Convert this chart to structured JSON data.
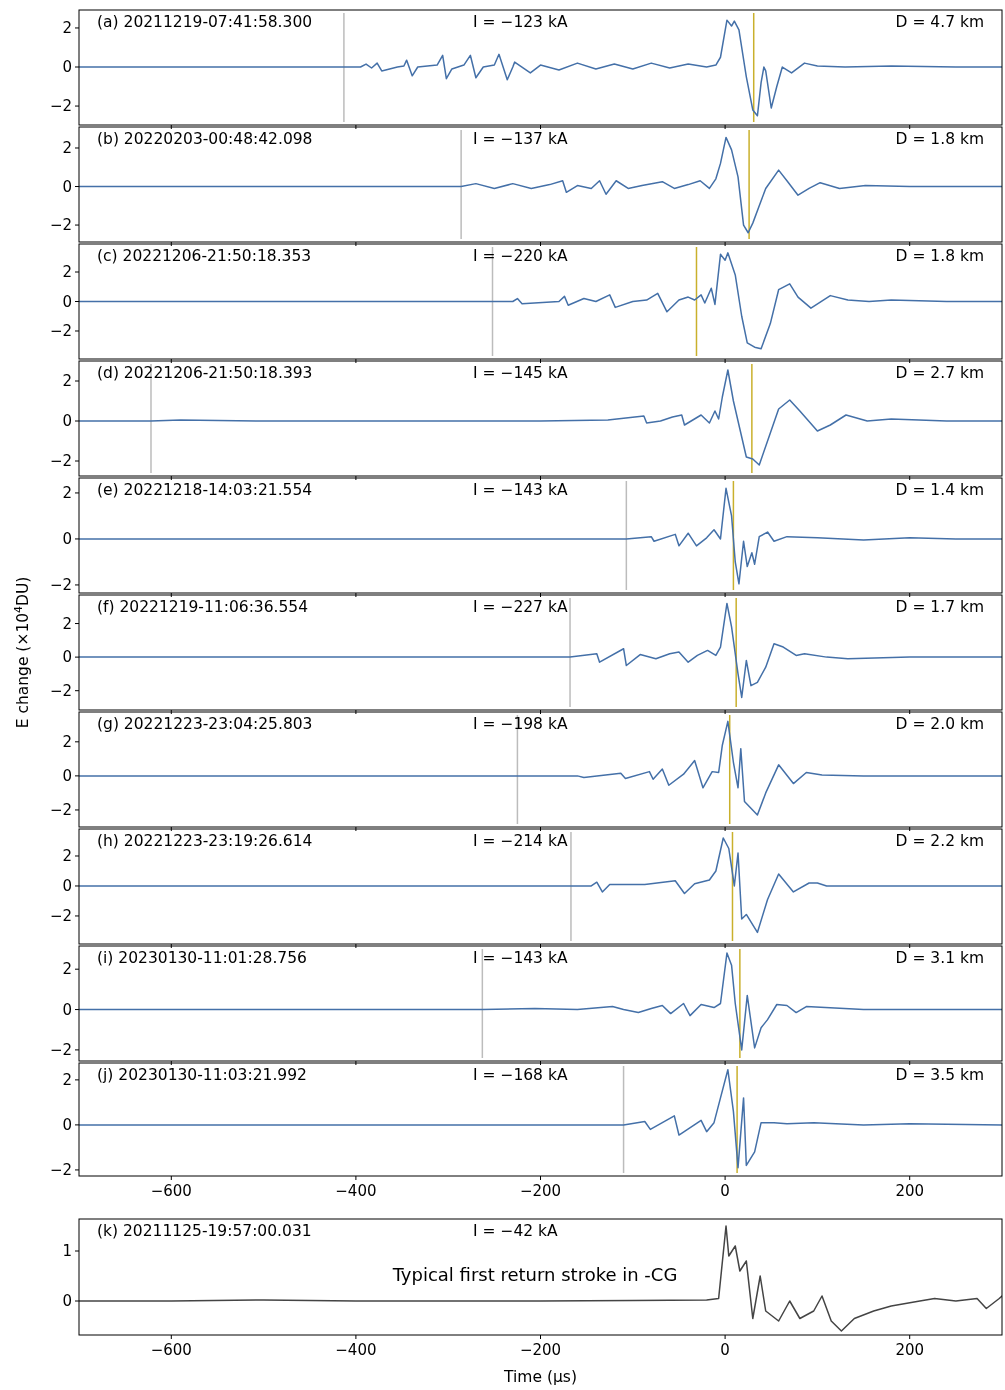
{
  "chart_data": [
    {
      "type": "line",
      "annotations": [
        "(a) 20211219-07:41:58.300",
        "I = −123 kA",
        "D = 4.7 km"
      ],
      "xlim": [
        -700,
        300
      ],
      "xticks": [
        -600,
        -400,
        -200,
        0,
        200
      ],
      "ylim": [
        -2.97,
        2.92
      ],
      "yticks": [
        -2,
        0,
        2
      ],
      "tick_labels": "y",
      "ref_lines": [
        {
          "axis": "x",
          "value": -413,
          "color": "#bcbcbc"
        },
        {
          "axis": "x",
          "value": 31,
          "color": "#c9b02c"
        }
      ],
      "series": [
        {
          "color": "#4470a8",
          "x": [
            -700,
            -600,
            -500,
            -420,
            -395,
            -389,
            -383,
            -377,
            -372,
            -355,
            -348,
            -345,
            -339,
            -333,
            -312,
            -306,
            -302,
            -296,
            -283,
            -276,
            -270,
            -262,
            -250,
            -245,
            -236,
            -230,
            -228,
            -211,
            -200,
            -180,
            -160,
            -140,
            -120,
            -100,
            -80,
            -60,
            -40,
            -20,
            -10,
            -5,
            2,
            7,
            10,
            15,
            23,
            30,
            35,
            39,
            42,
            44,
            50,
            56,
            62,
            72,
            86,
            100,
            130,
            180,
            250,
            300
          ],
          "values": [
            0,
            0,
            0,
            0,
            0,
            0.15,
            -0.05,
            0.2,
            -0.2,
            0,
            0.05,
            0.35,
            -0.45,
            0,
            0.1,
            0.6,
            -0.6,
            -0.1,
            0.1,
            0.6,
            -0.55,
            0,
            0.1,
            0.65,
            -0.65,
            0,
            0.25,
            -0.3,
            0.1,
            -0.15,
            0.2,
            -0.1,
            0.15,
            -0.1,
            0.2,
            -0.05,
            0.15,
            0,
            0.1,
            0.5,
            2.4,
            2.1,
            2.35,
            1.9,
            -0.5,
            -2.2,
            -2.5,
            -0.8,
            0,
            -0.2,
            -2.1,
            -1.0,
            0,
            -0.3,
            0.2,
            0.05,
            0,
            0.05,
            0,
            0
          ]
        }
      ]
    },
    {
      "type": "line",
      "annotations": [
        "(b) 20220203-00:48:42.098",
        "I = −137 kA",
        "D = 1.8 km"
      ],
      "xlim": [
        -700,
        300
      ],
      "xticks": [
        -600,
        -400,
        -200,
        0,
        200
      ],
      "ylim": [
        -2.88,
        3.09
      ],
      "yticks": [
        -2,
        0,
        2
      ],
      "tick_labels": "y",
      "ref_lines": [
        {
          "axis": "x",
          "value": -286,
          "color": "#bcbcbc"
        },
        {
          "axis": "x",
          "value": 26,
          "color": "#c9b02c"
        }
      ],
      "series": [
        {
          "color": "#4470a8",
          "x": [
            -700,
            -500,
            -300,
            -286,
            -270,
            -250,
            -230,
            -210,
            -190,
            -176,
            -172,
            -160,
            -145,
            -136,
            -129,
            -118,
            -105,
            -90,
            -68,
            -55,
            -40,
            -27,
            -17,
            -10,
            -5,
            1,
            7,
            14,
            20,
            25,
            30,
            37,
            44,
            58,
            67,
            79,
            91,
            103,
            124,
            152,
            200,
            300
          ],
          "values": [
            0,
            0,
            0,
            0,
            0.15,
            -0.1,
            0.15,
            -0.1,
            0.1,
            0.3,
            -0.3,
            0.05,
            -0.1,
            0.3,
            -0.4,
            0.3,
            -0.1,
            0.05,
            0.25,
            -0.1,
            0.1,
            0.3,
            -0.1,
            0.4,
            1.2,
            2.55,
            1.9,
            0.5,
            -2.0,
            -2.4,
            -1.9,
            -1.0,
            -0.1,
            0.85,
            0.3,
            -0.45,
            -0.1,
            0.2,
            -0.1,
            0.05,
            0,
            0
          ]
        }
      ]
    },
    {
      "type": "line",
      "annotations": [
        "(c) 20221206-21:50:18.353",
        "I = −220 kA",
        "D = 1.8 km"
      ],
      "xlim": [
        -700,
        300
      ],
      "xticks": [
        -600,
        -400,
        -200,
        0,
        200
      ],
      "ylim": [
        -3.9,
        3.9
      ],
      "yticks": [
        -2,
        0,
        2
      ],
      "tick_labels": "y",
      "ref_lines": [
        {
          "axis": "x",
          "value": -252,
          "color": "#bcbcbc"
        },
        {
          "axis": "x",
          "value": -31,
          "color": "#c9b02c"
        }
      ],
      "series": [
        {
          "color": "#4470a8",
          "x": [
            -700,
            -400,
            -252,
            -230,
            -225,
            -220,
            -180,
            -174,
            -170,
            -153,
            -140,
            -125,
            -119,
            -100,
            -85,
            -73,
            -63,
            -50,
            -40,
            -33,
            -26,
            -22,
            -15,
            -11,
            -5,
            0,
            3,
            11,
            18,
            24,
            32,
            39,
            49,
            58,
            70,
            79,
            93,
            114,
            133,
            156,
            180,
            240,
            300
          ],
          "values": [
            0,
            0,
            0,
            0,
            0.2,
            -0.15,
            0,
            0.35,
            -0.25,
            0.2,
            0,
            0.45,
            -0.4,
            0,
            0.1,
            0.55,
            -0.7,
            0.1,
            0.3,
            0.1,
            0.45,
            -0.1,
            0.9,
            -0.2,
            3.2,
            2.8,
            3.3,
            1.8,
            -1.0,
            -2.8,
            -3.1,
            -3.2,
            -1.5,
            0.8,
            1.2,
            0.3,
            -0.45,
            0.4,
            0.1,
            0,
            0.1,
            0,
            0
          ]
        }
      ]
    },
    {
      "type": "line",
      "annotations": [
        "(d) 20221206-21:50:18.393",
        "I = −145 kA",
        "D = 2.7 km"
      ],
      "xlim": [
        -700,
        300
      ],
      "xticks": [
        -600,
        -400,
        -200,
        0,
        200
      ],
      "ylim": [
        -2.75,
        3.0
      ],
      "yticks": [
        -2,
        0,
        2
      ],
      "tick_labels": "y",
      "ref_lines": [
        {
          "axis": "x",
          "value": -622,
          "color": "#bcbcbc"
        },
        {
          "axis": "x",
          "value": 29,
          "color": "#c9b02c"
        }
      ],
      "series": [
        {
          "color": "#4470a8",
          "x": [
            -700,
            -622,
            -590,
            -500,
            -400,
            -300,
            -200,
            -127,
            -88,
            -85,
            -70,
            -57,
            -47,
            -44,
            -35,
            -26,
            -17,
            -11,
            -7,
            -3,
            3,
            9,
            16,
            23,
            30,
            37,
            49,
            58,
            70,
            81,
            100,
            114,
            131,
            154,
            180,
            240,
            300
          ],
          "values": [
            0,
            0,
            0.05,
            0,
            0,
            0,
            0,
            0.05,
            0.25,
            -0.1,
            0,
            0.2,
            0.3,
            -0.2,
            0.05,
            0.3,
            -0.1,
            0.5,
            0.1,
            1.2,
            2.55,
            1.0,
            -0.4,
            -1.8,
            -1.9,
            -2.2,
            -0.6,
            0.6,
            1.05,
            0.5,
            -0.5,
            -0.2,
            0.3,
            0,
            0.1,
            0,
            0
          ]
        }
      ]
    },
    {
      "type": "line",
      "annotations": [
        "(e) 20221218-14:03:21.554",
        "I = −143 kA",
        "D = 1.4 km"
      ],
      "xlim": [
        -700,
        300
      ],
      "xticks": [
        -600,
        -400,
        -200,
        0,
        200
      ],
      "ylim": [
        -2.35,
        2.65
      ],
      "yticks": [
        -2,
        0,
        2
      ],
      "tick_labels": "y",
      "ref_lines": [
        {
          "axis": "x",
          "value": -107,
          "color": "#bcbcbc"
        },
        {
          "axis": "x",
          "value": 9,
          "color": "#c9b02c"
        }
      ],
      "series": [
        {
          "color": "#4470a8",
          "x": [
            -700,
            -400,
            -107,
            -80,
            -77,
            -54,
            -50,
            -40,
            -31,
            -20,
            -12,
            -5,
            1,
            7,
            11,
            15,
            20,
            24,
            29,
            32,
            37,
            46,
            53,
            67,
            100,
            150,
            200,
            250,
            300
          ],
          "values": [
            0,
            0,
            0,
            0.1,
            -0.1,
            0.2,
            -0.3,
            0.25,
            -0.3,
            0.05,
            0.4,
            0,
            2.2,
            1.0,
            -1.0,
            -1.95,
            -0.1,
            -1.2,
            -0.6,
            -1.1,
            0.1,
            0.3,
            -0.1,
            0.1,
            0.05,
            -0.05,
            0.05,
            0,
            0
          ]
        }
      ]
    },
    {
      "type": "line",
      "annotations": [
        "(f) 20221219-11:06:36.554",
        "I = −227 kA",
        "D = 1.7 km"
      ],
      "ylabel": "E change (×10$^{4}$DU)",
      "xlim": [
        -700,
        300
      ],
      "xticks": [
        -600,
        -400,
        -200,
        0,
        200
      ],
      "ylim": [
        -3.15,
        3.7
      ],
      "yticks": [
        -2,
        0,
        2
      ],
      "tick_labels": "y",
      "ref_lines": [
        {
          "axis": "x",
          "value": -168,
          "color": "#bcbcbc"
        },
        {
          "axis": "x",
          "value": 12,
          "color": "#c9b02c"
        }
      ],
      "series": [
        {
          "color": "#4470a8",
          "x": [
            -700,
            -400,
            -168,
            -139,
            -136,
            -110,
            -107,
            -92,
            -75,
            -60,
            -50,
            -40,
            -30,
            -19,
            -10,
            -5,
            2,
            7,
            14,
            18,
            23,
            28,
            35,
            44,
            53,
            63,
            77,
            86,
            110,
            133,
            200,
            300
          ],
          "values": [
            0,
            0,
            0,
            0.2,
            -0.3,
            0.5,
            -0.5,
            0.15,
            -0.1,
            0.2,
            0.3,
            -0.3,
            0.1,
            0.4,
            0.1,
            0.6,
            3.2,
            1.8,
            -1.0,
            -2.4,
            -0.2,
            -1.7,
            -1.5,
            -0.6,
            0.8,
            0.6,
            0.1,
            0.2,
            0,
            -0.1,
            0,
            0
          ]
        }
      ]
    },
    {
      "type": "line",
      "annotations": [
        "(g) 20221223-23:04:25.803",
        "I = −198 kA",
        "D = 2.0 km"
      ],
      "xlim": [
        -700,
        300
      ],
      "xticks": [
        -600,
        -400,
        -200,
        0,
        200
      ],
      "ylim": [
        -3.0,
        3.75
      ],
      "yticks": [
        -2,
        0,
        2
      ],
      "tick_labels": "y",
      "ref_lines": [
        {
          "axis": "x",
          "value": -225,
          "color": "#bcbcbc"
        },
        {
          "axis": "x",
          "value": 5,
          "color": "#c9b02c"
        }
      ],
      "series": [
        {
          "color": "#4470a8",
          "x": [
            -700,
            -400,
            -225,
            -160,
            -153,
            -113,
            -108,
            -82,
            -78,
            -68,
            -61,
            -45,
            -33,
            -24,
            -14,
            -7,
            -3,
            3,
            9,
            14,
            17,
            21,
            28,
            35,
            44,
            58,
            74,
            88,
            105,
            150,
            300
          ],
          "values": [
            0,
            0,
            0,
            0,
            -0.1,
            0.15,
            -0.15,
            0.25,
            -0.2,
            0.4,
            -0.55,
            0.1,
            0.9,
            -0.7,
            0.25,
            0.2,
            1.8,
            3.2,
            0.8,
            -0.7,
            1.6,
            -1.5,
            -1.9,
            -2.3,
            -1.0,
            0.65,
            -0.45,
            0.2,
            0.05,
            0,
            0
          ]
        }
      ]
    },
    {
      "type": "line",
      "annotations": [
        "(h) 20221223-23:19:26.614",
        "I = −214 kA",
        "D = 2.2 km"
      ],
      "xlim": [
        -700,
        300
      ],
      "xticks": [
        -600,
        -400,
        -200,
        0,
        200
      ],
      "ylim": [
        -3.87,
        3.8
      ],
      "yticks": [
        -2,
        0,
        2
      ],
      "tick_labels": "y",
      "ref_lines": [
        {
          "axis": "x",
          "value": -167,
          "color": "#bcbcbc"
        },
        {
          "axis": "x",
          "value": 8,
          "color": "#c9b02c"
        }
      ],
      "series": [
        {
          "color": "#4470a8",
          "x": [
            -700,
            -400,
            -167,
            -145,
            -139,
            -133,
            -125,
            -87,
            -54,
            -44,
            -33,
            -17,
            -10,
            -2,
            4,
            10,
            14,
            18,
            23,
            35,
            46,
            58,
            74,
            91,
            100,
            110,
            200,
            300
          ],
          "values": [
            0,
            0,
            0,
            0,
            0.25,
            -0.4,
            0.1,
            0.1,
            0.35,
            -0.5,
            0.15,
            0.4,
            1.0,
            3.2,
            2.5,
            0,
            2.2,
            -2.2,
            -1.9,
            -3.1,
            -0.9,
            0.8,
            -0.4,
            0.2,
            0.2,
            0,
            0,
            0
          ]
        }
      ]
    },
    {
      "type": "line",
      "annotations": [
        "(i) 20230130-11:01:28.756",
        "I = −143 kA",
        "D = 3.1 km"
      ],
      "xlim": [
        -700,
        300
      ],
      "xticks": [
        -600,
        -400,
        -200,
        0,
        200
      ],
      "ylim": [
        -2.55,
        3.15
      ],
      "yticks": [
        -2,
        0,
        2
      ],
      "tick_labels": "y",
      "ref_lines": [
        {
          "axis": "x",
          "value": -263,
          "color": "#bcbcbc"
        },
        {
          "axis": "x",
          "value": 16,
          "color": "#c9b02c"
        }
      ],
      "series": [
        {
          "color": "#4470a8",
          "x": [
            -700,
            -400,
            -263,
            -206,
            -160,
            -122,
            -110,
            -94,
            -80,
            -68,
            -59,
            -45,
            -38,
            -26,
            -12,
            -5,
            2,
            7,
            11,
            18,
            24,
            32,
            39,
            46,
            56,
            67,
            77,
            88,
            150,
            300
          ],
          "values": [
            0,
            0,
            0,
            0.05,
            0,
            0.15,
            0,
            -0.15,
            0.05,
            0.2,
            -0.2,
            0.3,
            -0.3,
            0.25,
            0.1,
            0.3,
            2.8,
            2.2,
            0.3,
            -2.0,
            0.7,
            -1.9,
            -0.9,
            -0.5,
            0.25,
            0.2,
            -0.15,
            0.15,
            0,
            0
          ]
        }
      ]
    },
    {
      "type": "line",
      "annotations": [
        "(j) 20230130-11:03:21.992",
        "I = −168 kA",
        "D = 3.5 km"
      ],
      "xlim": [
        -700,
        300
      ],
      "xticks": [
        -600,
        -400,
        -200,
        0,
        200
      ],
      "ylim": [
        -2.27,
        2.75
      ],
      "yticks": [
        -2,
        0,
        2
      ],
      "ref_lines": [
        {
          "axis": "x",
          "value": -110,
          "color": "#bcbcbc"
        },
        {
          "axis": "x",
          "value": 13,
          "color": "#c9b02c"
        }
      ],
      "series": [
        {
          "color": "#4470a8",
          "x": [
            -700,
            -400,
            -110,
            -87,
            -81,
            -55,
            -50,
            -26,
            -20,
            -12,
            -5,
            3,
            9,
            14,
            20,
            23,
            32,
            39,
            53,
            67,
            96,
            150,
            200,
            300
          ],
          "values": [
            0,
            0,
            0,
            0.15,
            -0.2,
            0.4,
            -0.45,
            0.2,
            -0.3,
            0.1,
            1.2,
            2.45,
            0.6,
            -1.9,
            1.2,
            -1.8,
            -1.2,
            0.1,
            0.1,
            0.05,
            0.1,
            0,
            0.05,
            0
          ]
        }
      ]
    },
    {
      "type": "line",
      "annotations": [
        "(k) 20211125-19:57:00.031",
        "I = −42 kA"
      ],
      "subtitle": "Typical first return stroke in -CG",
      "xlabel": "Time (μs)",
      "xlim": [
        -700,
        300
      ],
      "xticks": [
        -600,
        -400,
        -200,
        0,
        200
      ],
      "ylim": [
        -0.68,
        1.64
      ],
      "yticks": [
        0,
        1
      ],
      "series": [
        {
          "color": "#444444",
          "x": [
            -700,
            -600,
            -500,
            -400,
            -300,
            -200,
            -100,
            -20,
            -7,
            1,
            4,
            11,
            16,
            23,
            30,
            38,
            44,
            58,
            70,
            81,
            96,
            105,
            115,
            126,
            140,
            161,
            180,
            211,
            227,
            250,
            273,
            283,
            297,
            300
          ],
          "values": [
            0,
            0,
            0.02,
            0,
            0,
            0,
            0.01,
            0.02,
            0.05,
            1.5,
            0.9,
            1.1,
            0.6,
            0.8,
            -0.35,
            0.5,
            -0.2,
            -0.4,
            0,
            -0.35,
            -0.2,
            0.1,
            -0.4,
            -0.6,
            -0.35,
            -0.2,
            -0.1,
            0,
            0.05,
            0,
            0.05,
            -0.15,
            0.05,
            0.1
          ]
        }
      ]
    }
  ]
}
